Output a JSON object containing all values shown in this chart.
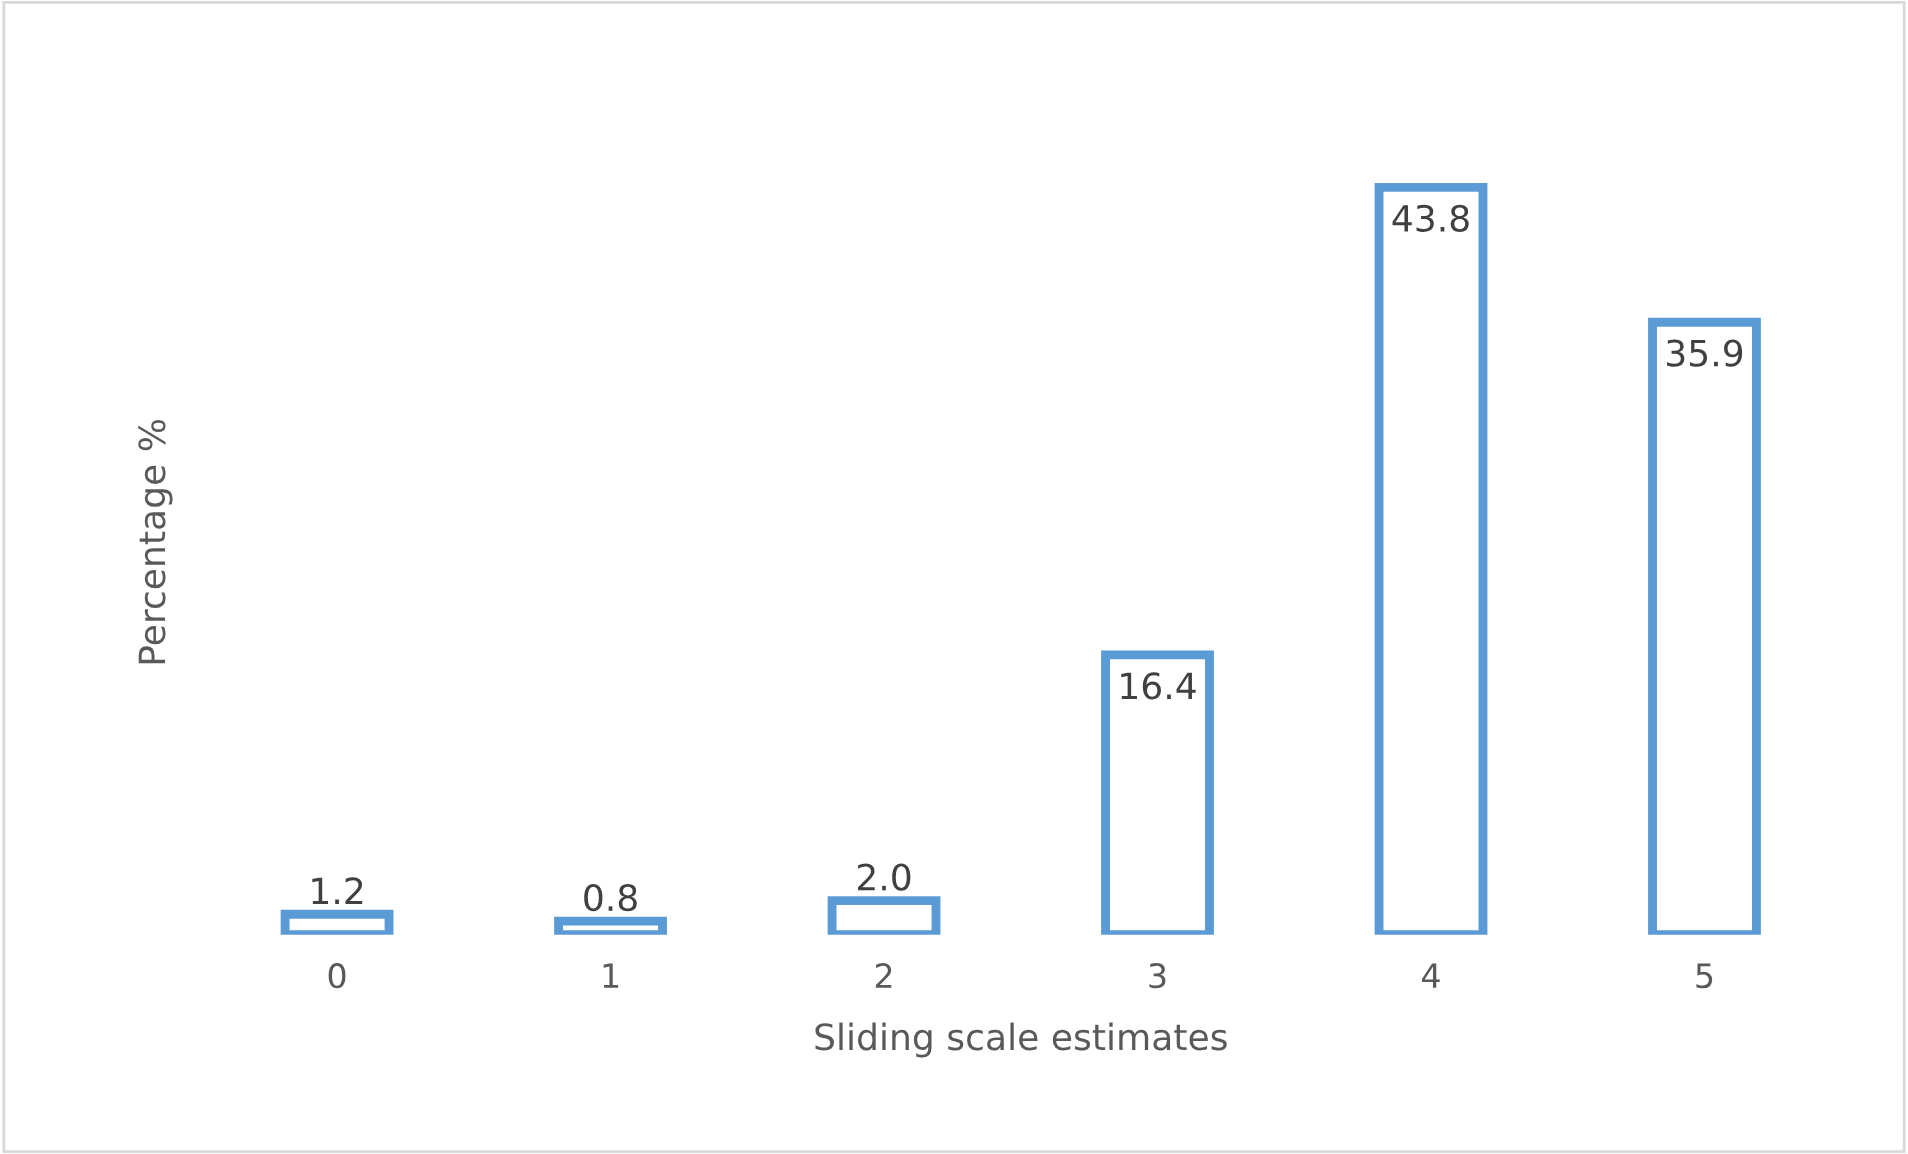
{
  "chart_data": {
    "type": "bar",
    "xlabel": "Sliding scale estimates",
    "ylabel": "Percentage %",
    "categories": [
      "0",
      "1",
      "2",
      "3",
      "4",
      "5"
    ],
    "values": [
      1.2,
      0.8,
      2.0,
      16.4,
      43.8,
      35.9
    ],
    "value_labels": [
      "1.2",
      "0.8",
      "2.0",
      "16.4",
      "43.8",
      "35.9"
    ],
    "color": "#5b9bd5",
    "grid": false,
    "legend": false
  }
}
